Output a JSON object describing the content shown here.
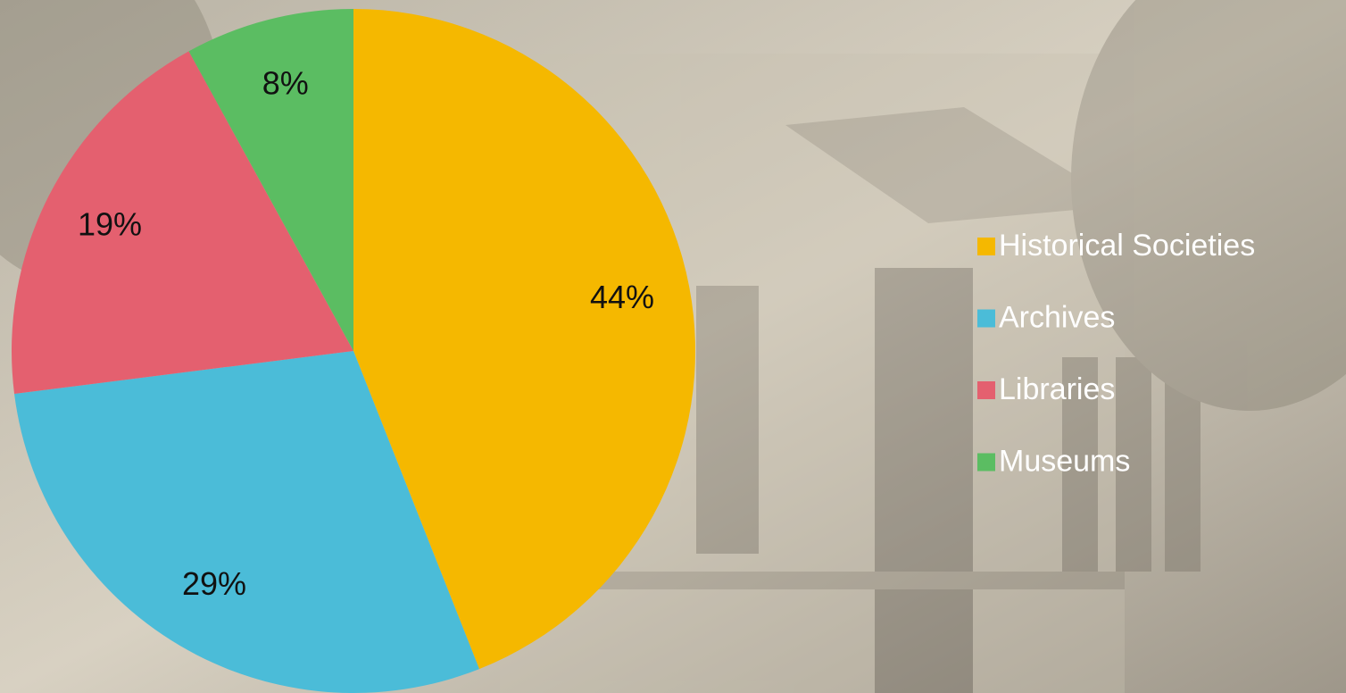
{
  "chart_data": {
    "type": "pie",
    "categories": [
      "Historical Societies",
      "Archives",
      "Libraries",
      "Museums"
    ],
    "values": [
      44,
      29,
      19,
      8
    ],
    "value_labels": [
      "44%",
      "29%",
      "19%",
      "8%"
    ],
    "colors": [
      "#f5b800",
      "#4bbcd8",
      "#e4606f",
      "#5bbd62"
    ],
    "legend": "right"
  }
}
